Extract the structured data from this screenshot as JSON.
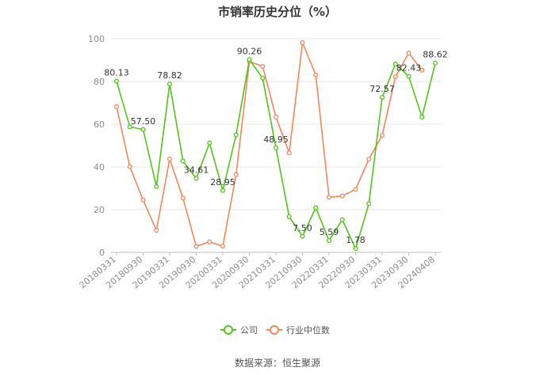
{
  "chart_data": {
    "type": "line",
    "title": "市销率历史分位（%）",
    "source": "数据来源：恒生聚源",
    "ylim": [
      0,
      100
    ],
    "yticks": [
      0,
      20,
      40,
      60,
      80,
      100
    ],
    "x_tick_labels": [
      "20180331",
      "20180930",
      "20190331",
      "20190930",
      "20200331",
      "20200930",
      "20210331",
      "20210930",
      "20220331",
      "20220930",
      "20230331",
      "20230930",
      "20240408"
    ],
    "grid": true,
    "legend_position": "bottom",
    "series": [
      {
        "name": "公司",
        "color": "#52c41a",
        "values": [
          80.13,
          58.8,
          57.5,
          30.8,
          78.82,
          42.8,
          34.61,
          51.2,
          28.95,
          55.0,
          90.26,
          81.6,
          48.95,
          16.7,
          7.5,
          20.9,
          5.59,
          15.3,
          1.78,
          22.8,
          72.57,
          88.2,
          82.43,
          63.3,
          88.62
        ],
        "labels": {
          "0": "80.13",
          "2": "57.50",
          "4": "78.82",
          "6": "34.61",
          "8": "28.95",
          "10": "90.26",
          "12": "48.95",
          "14": "7.50",
          "16": "5.59",
          "18": "1.78",
          "20": "72.57",
          "22": "82.43",
          "24": "88.62"
        }
      },
      {
        "name": "行业中位数",
        "color": "#f5865c",
        "values": [
          68.2,
          40.1,
          24.5,
          10.3,
          43.7,
          25.4,
          2.8,
          4.9,
          2.9,
          36.4,
          89.4,
          87.1,
          63.4,
          46.6,
          98.2,
          83.1,
          25.8,
          26.4,
          29.5,
          43.6,
          54.8,
          82.2,
          93.3,
          85.3,
          null
        ]
      }
    ]
  }
}
